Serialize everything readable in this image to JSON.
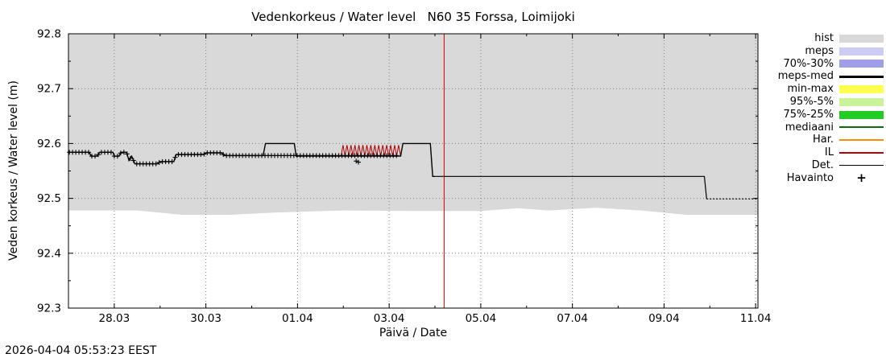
{
  "page": {
    "timestamp": "2026-04-04 05:53:23 EEST"
  },
  "chart_data": {
    "type": "line",
    "title": "Vedenkorkeus / Water level   N60 35 Forssa, Loimijoki",
    "xlabel": "Päivä / Date",
    "ylabel": "Veden korkeus / Water level (m)",
    "ylim": [
      92.3,
      92.8
    ],
    "xlim_days": [
      0,
      15.05
    ],
    "grid": true,
    "legend_position": "right-outside",
    "y_ticks": [
      {
        "v": 92.3,
        "label": "92.3"
      },
      {
        "v": 92.4,
        "label": "92.4"
      },
      {
        "v": 92.5,
        "label": "92.5"
      },
      {
        "v": 92.6,
        "label": "92.6"
      },
      {
        "v": 92.7,
        "label": "92.7"
      },
      {
        "v": 92.8,
        "label": "92.8"
      }
    ],
    "y_minor": [
      92.35,
      92.45,
      92.55,
      92.65,
      92.75
    ],
    "x_ticks": [
      {
        "day": 1,
        "label": "28.03"
      },
      {
        "day": 3,
        "label": "30.03"
      },
      {
        "day": 5,
        "label": "01.04"
      },
      {
        "day": 7,
        "label": "03.04"
      },
      {
        "day": 9,
        "label": "05.04"
      },
      {
        "day": 11,
        "label": "07.04"
      },
      {
        "day": 13,
        "label": "09.04"
      },
      {
        "day": 15,
        "label": "11.04"
      }
    ],
    "x_minor_days": [
      2,
      4,
      6,
      8,
      10,
      12,
      14
    ],
    "hist_band": {
      "color": "#d9d9d9",
      "upper": 92.8,
      "lower": [
        [
          0,
          92.478
        ],
        [
          1.5,
          92.478
        ],
        [
          2.5,
          92.47
        ],
        [
          3.5,
          92.47
        ],
        [
          4.5,
          92.474
        ],
        [
          6,
          92.478
        ],
        [
          7.5,
          92.477
        ],
        [
          9,
          92.477
        ],
        [
          9.8,
          92.482
        ],
        [
          10.5,
          92.478
        ],
        [
          11.5,
          92.483
        ],
        [
          12.5,
          92.478
        ],
        [
          13.5,
          92.47
        ],
        [
          15.05,
          92.47
        ]
      ]
    },
    "now_line": {
      "day": 8.2,
      "color": "#cc0000"
    },
    "series": [
      {
        "name": "il-forecast",
        "color": "#b00000",
        "width": 1,
        "zigzag": {
          "from": 5.95,
          "to": 7.25,
          "low": 92.577,
          "high": 92.597,
          "teeth": 15
        }
      },
      {
        "name": "water-level-meps-med",
        "color": "#000000",
        "width": 1.4,
        "points": [
          [
            0,
            92.584
          ],
          [
            0.45,
            92.584
          ],
          [
            0.5,
            92.577
          ],
          [
            0.63,
            92.577
          ],
          [
            0.68,
            92.584
          ],
          [
            0.97,
            92.584
          ],
          [
            1.0,
            92.577
          ],
          [
            1.1,
            92.577
          ],
          [
            1.15,
            92.584
          ],
          [
            1.27,
            92.584
          ],
          [
            1.32,
            92.569
          ],
          [
            1.38,
            92.577
          ],
          [
            1.45,
            92.563
          ],
          [
            1.95,
            92.563
          ],
          [
            2.0,
            92.567
          ],
          [
            2.3,
            92.567
          ],
          [
            2.35,
            92.58
          ],
          [
            2.95,
            92.58
          ],
          [
            3.0,
            92.583
          ],
          [
            3.35,
            92.583
          ],
          [
            3.4,
            92.578
          ],
          [
            4.25,
            92.578
          ],
          [
            4.3,
            92.6
          ],
          [
            4.93,
            92.6
          ],
          [
            4.97,
            92.577
          ],
          [
            7.25,
            92.577
          ],
          [
            7.3,
            92.6
          ],
          [
            7.9,
            92.6
          ],
          [
            7.95,
            92.54
          ],
          [
            8.0,
            92.54
          ]
        ]
      },
      {
        "name": "det-forecast",
        "color": "#000000",
        "width": 1.2,
        "points": [
          [
            8.0,
            92.54
          ],
          [
            13.88,
            92.54
          ],
          [
            13.93,
            92.499
          ]
        ]
      },
      {
        "name": "det-forecast-tail",
        "color": "#000000",
        "width": 1.2,
        "dash": "2,2",
        "points": [
          [
            13.93,
            92.499
          ],
          [
            15.05,
            92.499
          ]
        ]
      }
    ],
    "observations": {
      "marker": "+",
      "color": "#000000",
      "start": 0.02,
      "end": 7.2,
      "step": 0.07,
      "points": [
        [
          0,
          92.584
        ],
        [
          0.45,
          92.584
        ],
        [
          0.5,
          92.577
        ],
        [
          0.63,
          92.577
        ],
        [
          0.68,
          92.584
        ],
        [
          0.97,
          92.584
        ],
        [
          1.0,
          92.577
        ],
        [
          1.1,
          92.577
        ],
        [
          1.15,
          92.584
        ],
        [
          1.27,
          92.584
        ],
        [
          1.32,
          92.569
        ],
        [
          1.38,
          92.577
        ],
        [
          1.45,
          92.563
        ],
        [
          1.95,
          92.563
        ],
        [
          2.0,
          92.567
        ],
        [
          2.3,
          92.567
        ],
        [
          2.35,
          92.58
        ],
        [
          2.95,
          92.58
        ],
        [
          3.0,
          92.583
        ],
        [
          3.35,
          92.583
        ],
        [
          3.4,
          92.578
        ],
        [
          7.2,
          92.578
        ]
      ],
      "extra": [
        [
          6.28,
          92.568
        ],
        [
          6.33,
          92.566
        ]
      ]
    }
  },
  "legend": {
    "items": [
      {
        "key": "hist",
        "label": "hist",
        "kind": "band",
        "color": "#d9d9d9"
      },
      {
        "key": "meps",
        "label": "meps",
        "kind": "band",
        "color": "#ccccf5"
      },
      {
        "key": "p70-30",
        "label": "70%-30%",
        "kind": "band",
        "color": "#9f9fe8"
      },
      {
        "key": "meps-med",
        "label": "meps-med",
        "kind": "line",
        "color": "#000000",
        "thickness": 3
      },
      {
        "key": "min-max",
        "label": "min-max",
        "kind": "band",
        "color": "#ffff50"
      },
      {
        "key": "p95-5",
        "label": "95%-5%",
        "kind": "band",
        "color": "#c9f299"
      },
      {
        "key": "p75-25",
        "label": "75%-25%",
        "kind": "band",
        "color": "#22cc22"
      },
      {
        "key": "mediaani",
        "label": "mediaani",
        "kind": "line",
        "color": "#0a6e0a",
        "thickness": 2
      },
      {
        "key": "har",
        "label": "Har.",
        "kind": "line",
        "color": "#ff8c00",
        "thickness": 2
      },
      {
        "key": "il",
        "label": "IL",
        "kind": "line",
        "color": "#c00000",
        "thickness": 2
      },
      {
        "key": "det",
        "label": "Det.",
        "kind": "line",
        "color": "#000000",
        "thickness": 1
      },
      {
        "key": "havainto",
        "label": "Havainto",
        "kind": "marker",
        "color": "#000000"
      }
    ]
  }
}
